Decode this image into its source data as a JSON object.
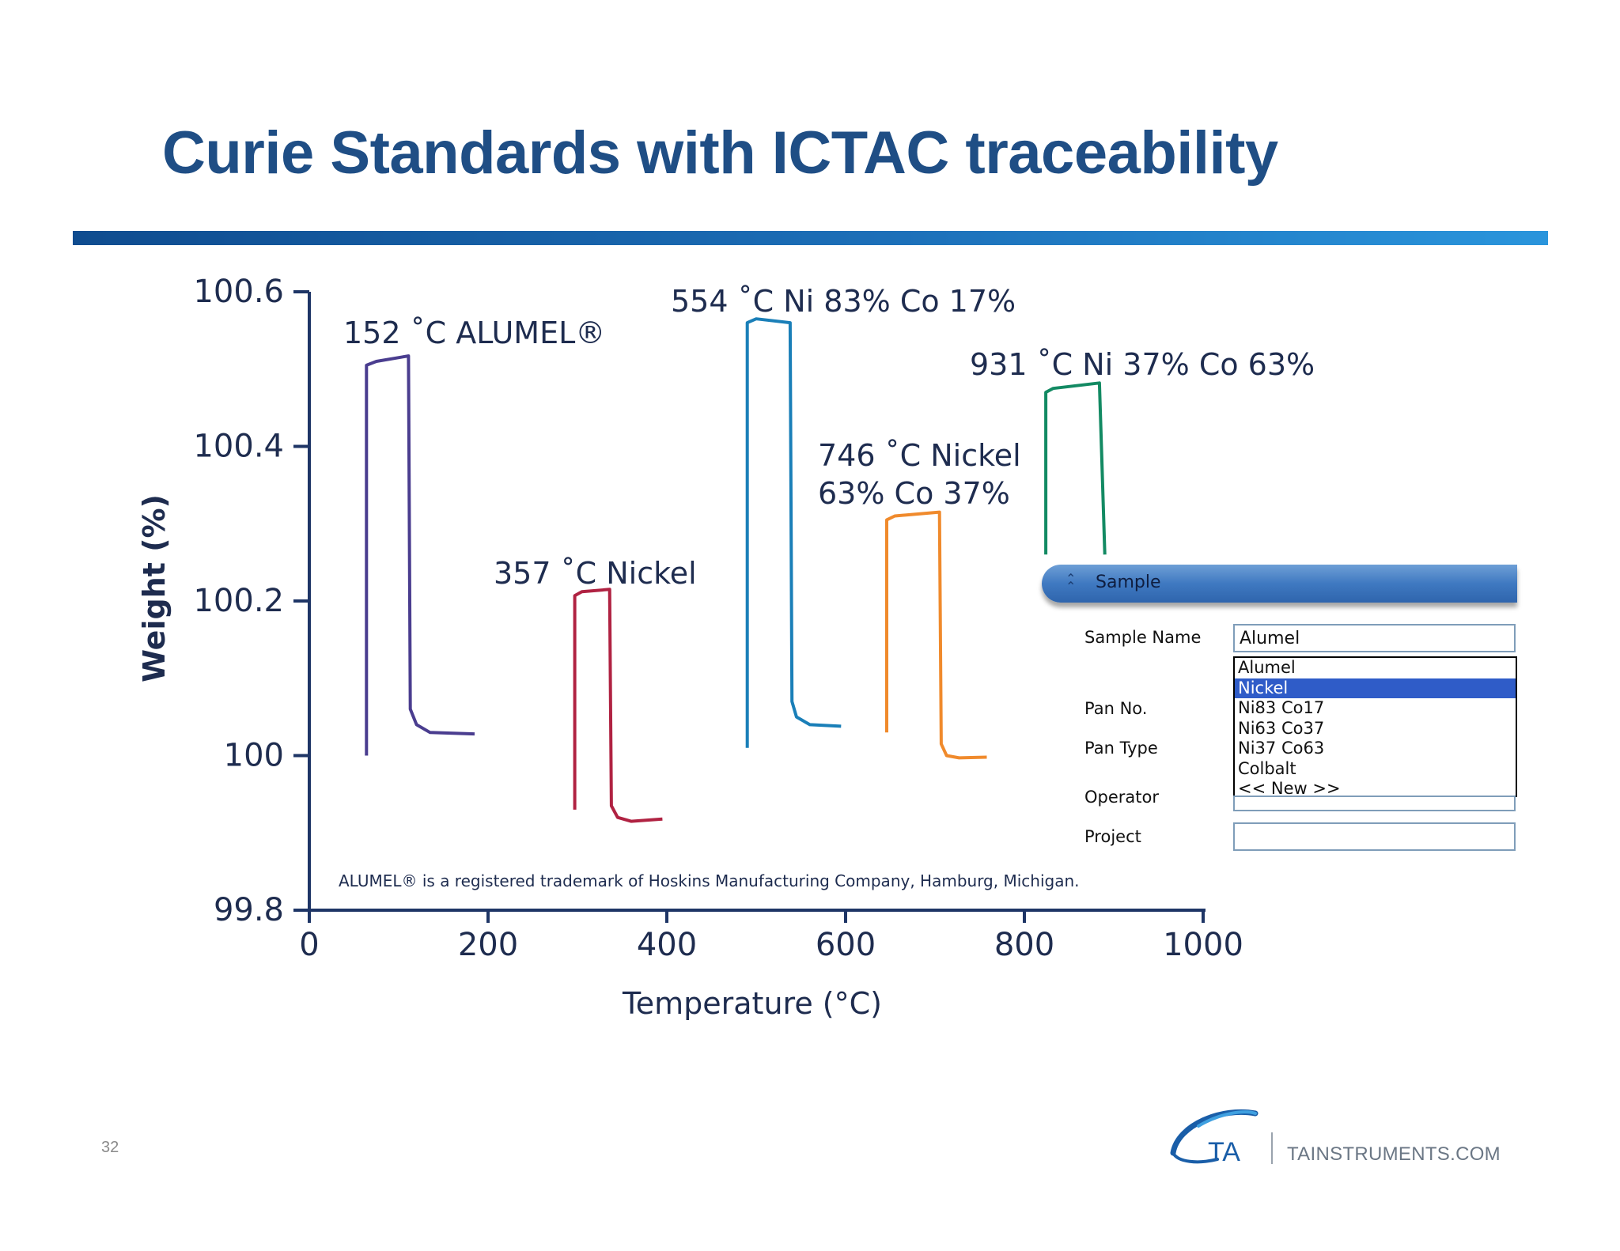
{
  "slide": {
    "title": "Curie Standards with ICTAC traceability",
    "page_number": "32",
    "logo_text": "TA",
    "website": "TAINSTRUMENTS.COM",
    "title_color": "#1f4e85",
    "rule_color": "#1c6fb8"
  },
  "chart_data": {
    "type": "line",
    "xlabel": "Temperature (°C)",
    "ylabel": "Weight (%)",
    "xlim": [
      0,
      1000
    ],
    "ylim": [
      99.8,
      100.6
    ],
    "x_ticks": [
      "0",
      "200",
      "400",
      "600",
      "800",
      "1000"
    ],
    "y_ticks": [
      "99.8",
      "100",
      "100.2",
      "100.4",
      "100.6"
    ],
    "grid": false,
    "footnote": "ALUMEL® is a registered trademark of Hoskins Manufacturing Company, Hamburg, Michigan.",
    "series": [
      {
        "label_lines": [
          "152 ˚C ALUMEL®"
        ],
        "curie_temperature": 152,
        "color": "#4a3d8f",
        "points": [
          [
            64,
            100.0
          ],
          [
            64,
            100.505
          ],
          [
            75,
            100.51
          ],
          [
            111,
            100.517
          ],
          [
            113,
            100.06
          ],
          [
            120,
            100.04
          ],
          [
            135,
            100.03
          ],
          [
            185,
            100.028
          ]
        ]
      },
      {
        "label_lines": [
          "357 ˚C Nickel"
        ],
        "curie_temperature": 357,
        "color": "#b02242",
        "points": [
          [
            297,
            99.93
          ],
          [
            297,
            100.207
          ],
          [
            305,
            100.212
          ],
          [
            336,
            100.215
          ],
          [
            338,
            99.935
          ],
          [
            345,
            99.92
          ],
          [
            360,
            99.915
          ],
          [
            395,
            99.918
          ]
        ]
      },
      {
        "label_lines": [
          "554 ˚C Ni 83% Co 17%"
        ],
        "curie_temperature": 554,
        "color": "#1a7fb8",
        "points": [
          [
            490,
            100.01
          ],
          [
            490,
            100.56
          ],
          [
            500,
            100.565
          ],
          [
            538,
            100.56
          ],
          [
            540,
            100.07
          ],
          [
            545,
            100.05
          ],
          [
            560,
            100.04
          ],
          [
            595,
            100.038
          ]
        ]
      },
      {
        "label_lines": [
          "746 ˚C Nickel",
          "63% Co 37%"
        ],
        "curie_temperature": 746,
        "color": "#f08a2c",
        "points": [
          [
            646,
            100.03
          ],
          [
            646,
            100.305
          ],
          [
            655,
            100.31
          ],
          [
            705,
            100.315
          ],
          [
            707,
            100.015
          ],
          [
            713,
            100.0
          ],
          [
            727,
            99.997
          ],
          [
            758,
            99.998
          ]
        ]
      },
      {
        "label_lines": [
          "931 ˚C Ni 37% Co 63%"
        ],
        "curie_temperature": 931,
        "color": "#138a63",
        "points": [
          [
            824,
            100.26
          ],
          [
            824,
            100.47
          ],
          [
            832,
            100.475
          ],
          [
            884,
            100.482
          ],
          [
            890,
            100.26
          ]
        ]
      }
    ]
  },
  "sample_panel": {
    "title": "Sample",
    "fields": {
      "sample_name_label": "Sample Name",
      "sample_name_value": "Alumel",
      "pan_no_label": "Pan No.",
      "pan_type_label": "Pan Type",
      "operator_label": "Operator",
      "project_label": "Project"
    },
    "dropdown_options": [
      "Alumel",
      "Nickel",
      "Ni83 Co17",
      "Ni63 Co37",
      "Ni37 Co63",
      "Colbalt",
      "<< New >>"
    ],
    "selected_index": 1,
    "header_color": "#3f79c1",
    "selection_color": "#2f5cc8"
  }
}
